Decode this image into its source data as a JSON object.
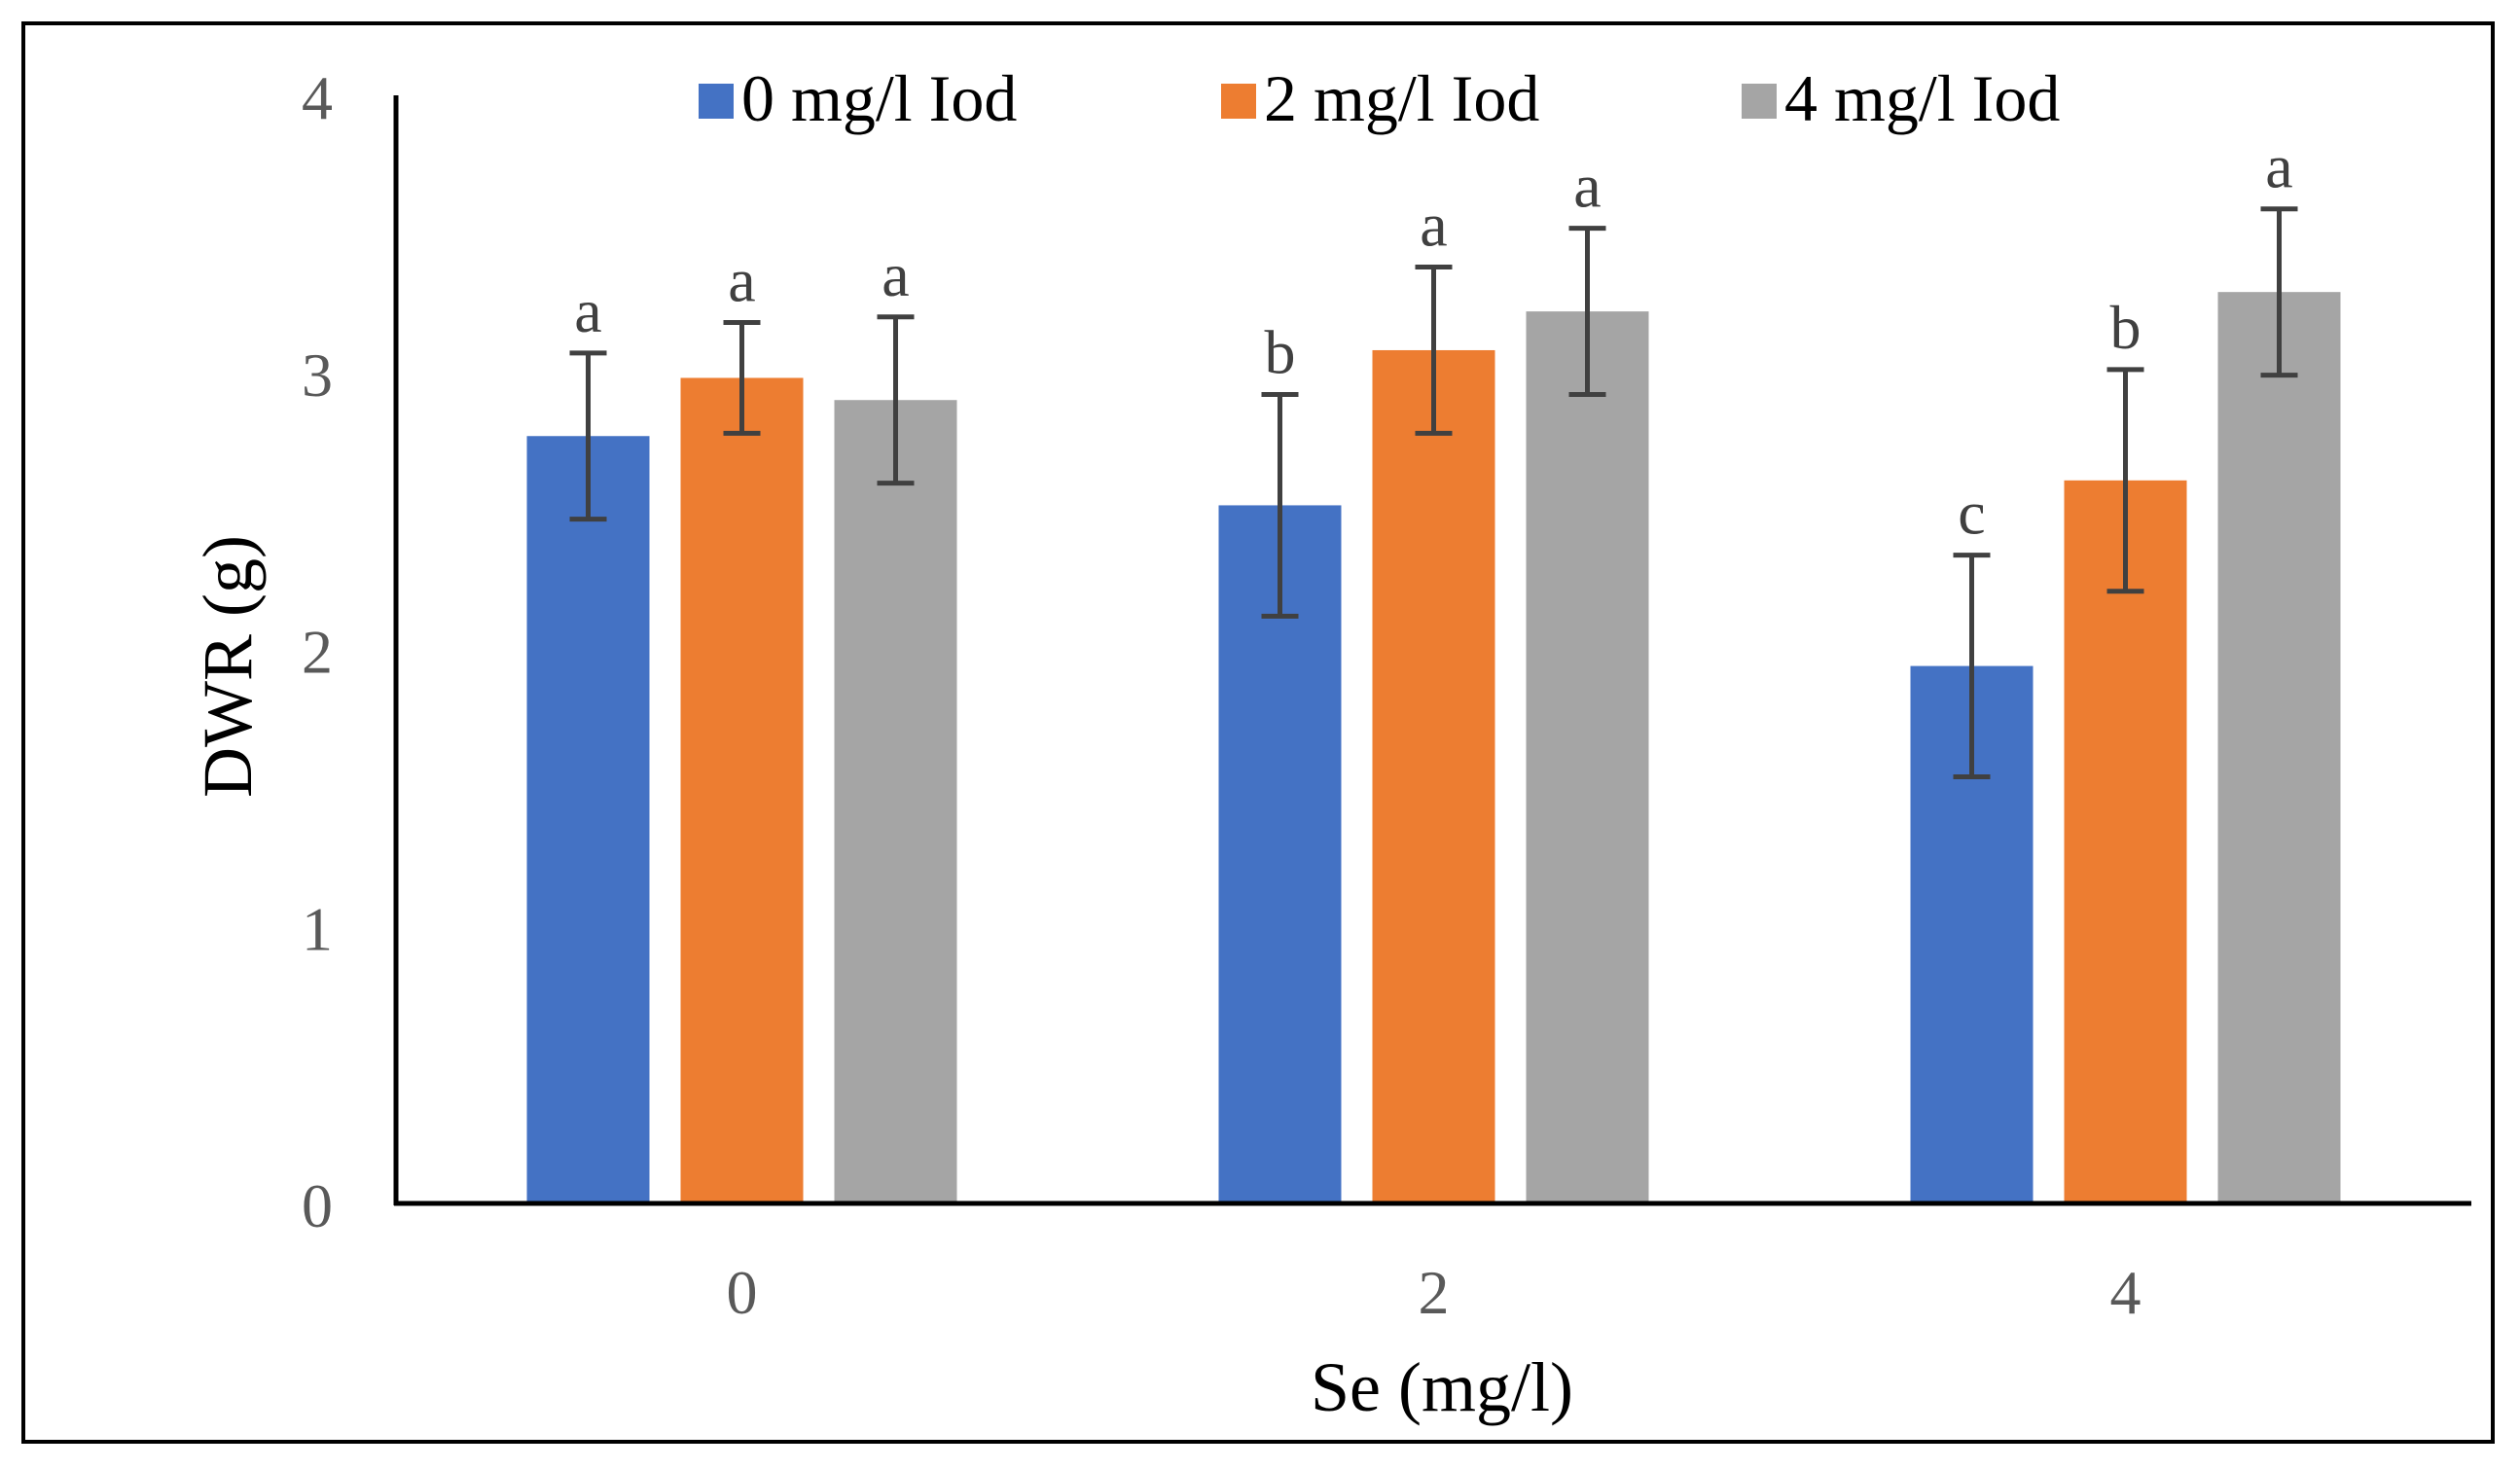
{
  "chart_data": {
    "type": "bar",
    "title": "",
    "xlabel": "Se (mg/l)",
    "ylabel": "DWR (g)",
    "ylim": [
      0,
      4
    ],
    "yticks": [
      "0",
      "1",
      "2",
      "3",
      "4"
    ],
    "categories": [
      "0",
      "2",
      "4"
    ],
    "legend_position": "top",
    "grid": false,
    "series": [
      {
        "name": "0 mg/l Iod",
        "color": "#4472C4",
        "values": [
          2.77,
          2.52,
          1.94
        ],
        "errors": [
          0.3,
          0.4,
          0.4
        ],
        "labels": [
          "a",
          "b",
          "c"
        ]
      },
      {
        "name": "2 mg/l Iod",
        "color": "#ED7D31",
        "values": [
          2.98,
          3.08,
          2.61
        ],
        "errors": [
          0.2,
          0.3,
          0.4
        ],
        "labels": [
          "a",
          "a",
          "b"
        ]
      },
      {
        "name": "4 mg/l Iod",
        "color": "#A5A5A5",
        "values": [
          2.9,
          3.22,
          3.29
        ],
        "errors": [
          0.3,
          0.3,
          0.3
        ],
        "labels": [
          "a",
          "a",
          "a"
        ]
      }
    ]
  }
}
